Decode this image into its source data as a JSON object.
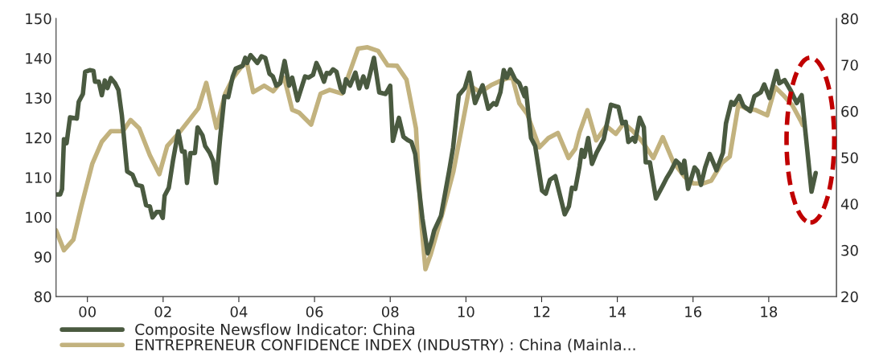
{
  "chart_data": {
    "type": "line",
    "xlim": [
      1999.17,
      2019.79
    ],
    "xticks": [
      {
        "value": 2000,
        "label": "00"
      },
      {
        "value": 2002,
        "label": "02"
      },
      {
        "value": 2004,
        "label": "04"
      },
      {
        "value": 2006,
        "label": "06"
      },
      {
        "value": 2008,
        "label": "08"
      },
      {
        "value": 2010,
        "label": "10"
      },
      {
        "value": 2012,
        "label": "12"
      },
      {
        "value": 2014,
        "label": "14"
      },
      {
        "value": 2016,
        "label": "16"
      },
      {
        "value": 2018,
        "label": "18"
      }
    ],
    "ylim": [
      80,
      150
    ],
    "yticks": [
      80,
      90,
      100,
      110,
      120,
      130,
      140,
      150
    ],
    "y2lim": [
      20,
      80
    ],
    "y2ticks": [
      20,
      30,
      40,
      50,
      60,
      70,
      80
    ],
    "legend": "bottom",
    "grid": false,
    "line_style": "solid",
    "marker": "none",
    "series": [
      {
        "name": "Composite Newsflow Indicator: China",
        "color": "#4a5a40",
        "x": [
          1999.17,
          1999.28,
          1999.33,
          1999.38,
          1999.45,
          1999.54,
          1999.72,
          1999.77,
          1999.88,
          1999.94,
          2000.06,
          2000.16,
          2000.2,
          2000.3,
          2000.38,
          2000.46,
          2000.53,
          2000.62,
          2000.73,
          2000.82,
          2000.91,
          2001.05,
          2001.19,
          2001.3,
          2001.44,
          2001.55,
          2001.65,
          2001.72,
          2001.83,
          2001.92,
          2001.99,
          2002.04,
          2002.15,
          2002.26,
          2002.4,
          2002.5,
          2002.57,
          2002.63,
          2002.72,
          2002.84,
          2002.91,
          2003.04,
          2003.11,
          2003.23,
          2003.32,
          2003.4,
          2003.51,
          2003.62,
          2003.72,
          2003.84,
          2003.92,
          2004.1,
          2004.17,
          2004.22,
          2004.31,
          2004.49,
          2004.6,
          2004.7,
          2004.81,
          2004.9,
          2004.99,
          2005.09,
          2005.21,
          2005.33,
          2005.41,
          2005.55,
          2005.75,
          2005.84,
          2005.96,
          2006.05,
          2006.12,
          2006.25,
          2006.32,
          2006.4,
          2006.49,
          2006.58,
          2006.69,
          2006.76,
          2006.83,
          2006.94,
          2007.08,
          2007.18,
          2007.29,
          2007.38,
          2007.57,
          2007.71,
          2007.88,
          2008.0,
          2008.07,
          2008.23,
          2008.35,
          2008.46,
          2008.56,
          2008.66,
          2008.74,
          2008.85,
          2008.99,
          2009.09,
          2009.16,
          2009.34,
          2009.45,
          2009.56,
          2009.66,
          2009.81,
          2009.97,
          2010.09,
          2010.24,
          2010.44,
          2010.59,
          2010.73,
          2010.8,
          2010.91,
          2011.0,
          2011.08,
          2011.17,
          2011.3,
          2011.41,
          2011.48,
          2011.55,
          2011.58,
          2011.72,
          2011.83,
          2012.01,
          2012.11,
          2012.22,
          2012.36,
          2012.61,
          2012.72,
          2012.8,
          2012.89,
          2013.0,
          2013.06,
          2013.13,
          2013.23,
          2013.33,
          2013.45,
          2013.64,
          2013.83,
          2014.03,
          2014.13,
          2014.22,
          2014.29,
          2014.41,
          2014.47,
          2014.59,
          2014.7,
          2014.75,
          2014.86,
          2015.02,
          2015.21,
          2015.3,
          2015.41,
          2015.55,
          2015.64,
          2015.71,
          2015.77,
          2015.87,
          2016.04,
          2016.12,
          2016.21,
          2016.32,
          2016.44,
          2016.62,
          2016.79,
          2016.87,
          2017.01,
          2017.08,
          2017.22,
          2017.33,
          2017.51,
          2017.62,
          2017.79,
          2017.88,
          2018.02,
          2018.21,
          2018.28,
          2018.42,
          2018.59,
          2018.74,
          2018.87,
          2019.13,
          2019.24
        ],
        "values": [
          105.7,
          105.7,
          107,
          119.6,
          118.6,
          125.1,
          124.8,
          129,
          131,
          136.6,
          137,
          136.8,
          134.1,
          134.1,
          130.7,
          134.4,
          132.5,
          135,
          133.7,
          132,
          125.6,
          111.5,
          110.7,
          108.1,
          107.8,
          103,
          102.7,
          99.9,
          101.3,
          101.3,
          99.8,
          105.4,
          107.4,
          114.2,
          121.6,
          116.5,
          116.5,
          108.6,
          116.1,
          116.1,
          122.6,
          120.6,
          117.9,
          116.2,
          114.2,
          108.6,
          120.3,
          130.4,
          130.2,
          135.4,
          137.4,
          138.1,
          140.1,
          138.8,
          140.8,
          138.8,
          140.5,
          140.1,
          136.1,
          135.4,
          133.1,
          133.7,
          139.3,
          133.1,
          135.1,
          129.4,
          135.4,
          135.1,
          135.8,
          138.8,
          137.4,
          134.1,
          136.3,
          136.1,
          137.2,
          136.6,
          132.4,
          131.4,
          134.7,
          133.1,
          136.4,
          132.4,
          135.4,
          132.7,
          140.1,
          131.4,
          131,
          133.1,
          119.2,
          125,
          120.2,
          119.4,
          118.9,
          115.9,
          108.8,
          99.7,
          90.9,
          93.9,
          96.6,
          100.3,
          106,
          111.8,
          117.5,
          130.7,
          132.5,
          136.4,
          128.7,
          133.2,
          127.3,
          128.7,
          128.3,
          131.4,
          137,
          135.1,
          137.2,
          134.7,
          133.7,
          132,
          130.4,
          132.5,
          119.9,
          117.9,
          106.7,
          105.9,
          109.4,
          110.3,
          100.7,
          102.7,
          107.4,
          107.1,
          112.8,
          116.9,
          115.2,
          119.9,
          113.4,
          116.2,
          119.6,
          128.3,
          127.7,
          123.6,
          124,
          118.9,
          119.9,
          119,
          125,
          122.6,
          113.8,
          113.8,
          104.7,
          108.1,
          109.8,
          111.5,
          114.2,
          113.4,
          111.1,
          114.2,
          107.1,
          112.5,
          111.6,
          108.1,
          112.5,
          115.9,
          111.8,
          116.2,
          123.6,
          129,
          128.3,
          130.5,
          128,
          126.7,
          130.4,
          131.4,
          133.4,
          130,
          136.8,
          133.7,
          134.5,
          131.7,
          128.7,
          130.7,
          106.4,
          111.1
        ]
      },
      {
        "name": "ENTREPRENEUR CONFIDENCE INDEX (INDUSTRY) : China (Mainla...",
        "color": "#c2b27e",
        "axis": "y2",
        "x": [
          1999.17,
          1999.38,
          1999.63,
          1999.84,
          2000.13,
          2000.38,
          2000.62,
          2000.94,
          2001.14,
          2001.37,
          2001.65,
          2001.9,
          2002.11,
          2002.43,
          2002.93,
          2003.14,
          2003.41,
          2003.64,
          2003.85,
          2004.06,
          2004.21,
          2004.38,
          2004.67,
          2004.91,
          2005.2,
          2005.41,
          2005.59,
          2005.91,
          2006.16,
          2006.4,
          2006.72,
          2006.89,
          2007.15,
          2007.4,
          2007.68,
          2007.93,
          2008.18,
          2008.43,
          2008.68,
          2008.82,
          2008.93,
          2009.07,
          2009.39,
          2009.67,
          2010.1,
          2010.38,
          2010.66,
          2010.87,
          2011.09,
          2011.23,
          2011.41,
          2011.62,
          2011.94,
          2012.18,
          2012.43,
          2012.71,
          2012.89,
          2013.0,
          2013.21,
          2013.44,
          2013.71,
          2013.96,
          2014.17,
          2014.41,
          2014.66,
          2014.95,
          2015.2,
          2015.48,
          2015.77,
          2016.01,
          2016.26,
          2016.48,
          2016.76,
          2016.97,
          2017.2,
          2017.39,
          2017.64,
          2017.96,
          2018.17,
          2018.38,
          2018.63,
          2018.84,
          2018.9
        ],
        "values": [
          34.3,
          30,
          32.3,
          39.5,
          48.7,
          53.4,
          55.7,
          55.7,
          58.1,
          56.3,
          50.5,
          46.4,
          52.5,
          55.4,
          60.6,
          66.1,
          56.4,
          63.8,
          67.2,
          69.5,
          70.6,
          64.1,
          65.5,
          64.3,
          67.2,
          60.3,
          59.7,
          57.1,
          63.8,
          64.6,
          63.8,
          67.5,
          73.5,
          73.8,
          73,
          69.9,
          69.8,
          66.8,
          56.3,
          36,
          25.9,
          29.1,
          38.3,
          47,
          65.5,
          64.1,
          65.6,
          66.4,
          67.1,
          67.2,
          61.7,
          59.4,
          52.2,
          54.2,
          55.3,
          49.9,
          51.9,
          55.4,
          60.2,
          53.7,
          56.8,
          55.1,
          57.4,
          55.7,
          53.4,
          49.9,
          54.4,
          49,
          45.9,
          44.4,
          44.4,
          45,
          48.8,
          50.2,
          61.5,
          60.6,
          60.3,
          59.1,
          65.2,
          63.5,
          61.2,
          58,
          57
        ]
      }
    ]
  }
}
